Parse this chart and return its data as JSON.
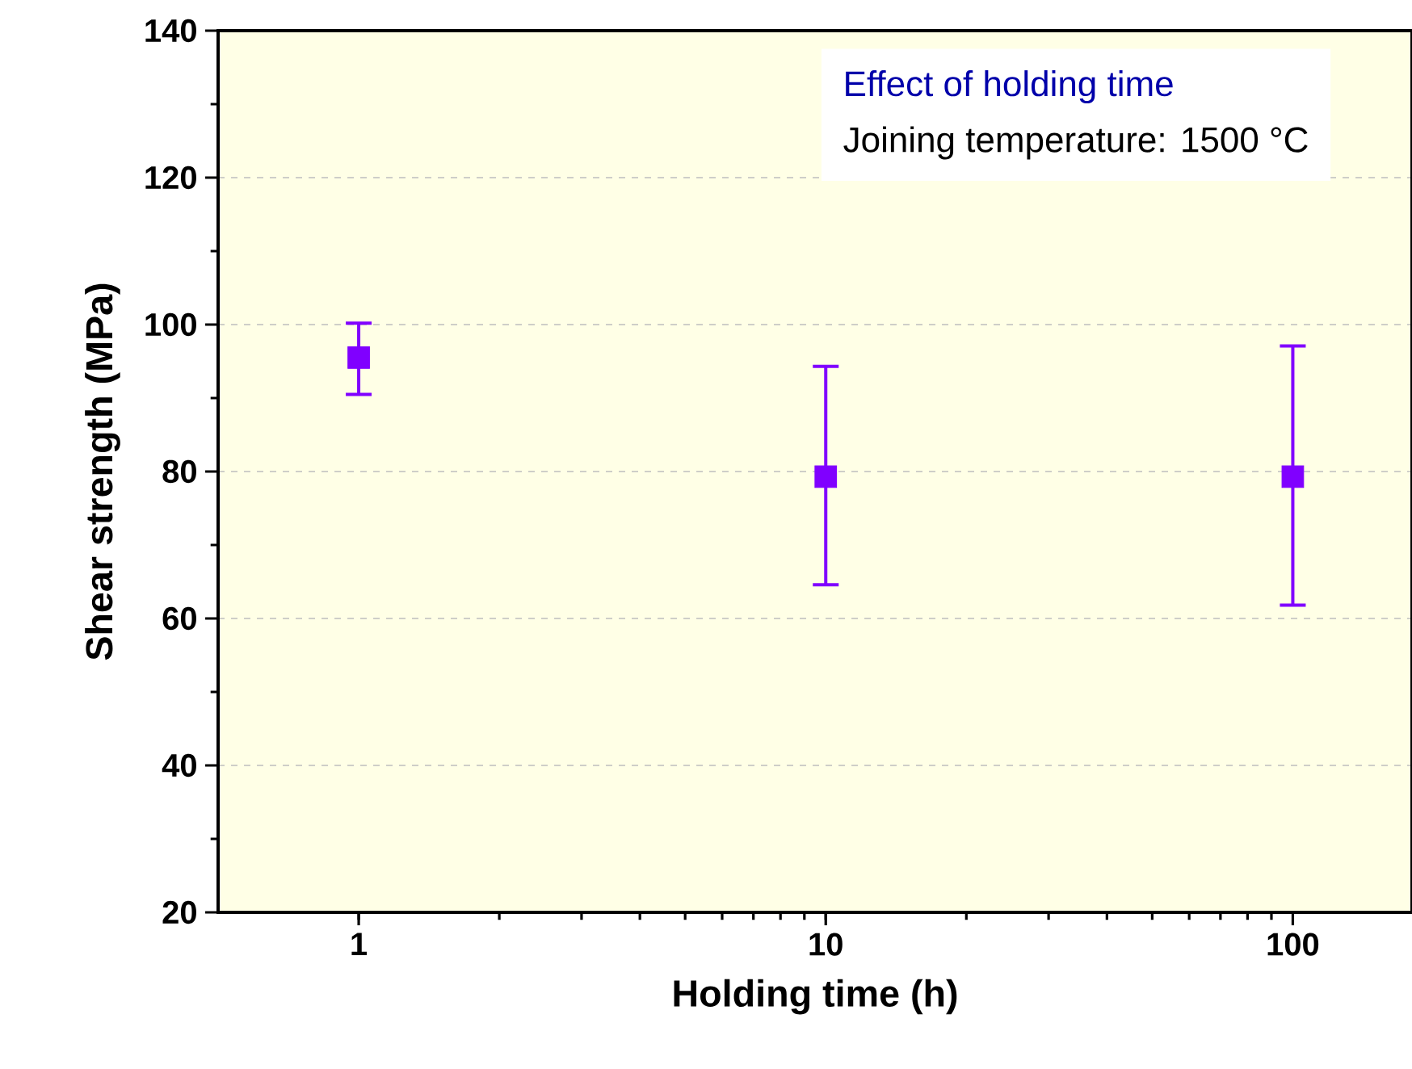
{
  "chart_data": {
    "type": "scatter",
    "xlabel": "Holding time (h)",
    "ylabel": "Shear strength (MPa)",
    "x": [
      1,
      10,
      100
    ],
    "values": [
      95.5,
      79.3,
      79.3
    ],
    "errors": [
      [
        90.5,
        100.2
      ],
      [
        64.6,
        94.3
      ],
      [
        61.8,
        97.1
      ]
    ],
    "color": "#8000ff",
    "marker": "square",
    "log": "x",
    "grid": "y",
    "xlim": [
      0.5,
      180
    ],
    "ylim": [
      20,
      140
    ],
    "xticks": [
      1,
      10,
      100
    ],
    "yticks": [
      20,
      40,
      60,
      80,
      100,
      120,
      140
    ],
    "annotations": [
      "Effect of holding time",
      "Joining temperature: 1500 °C"
    ]
  }
}
